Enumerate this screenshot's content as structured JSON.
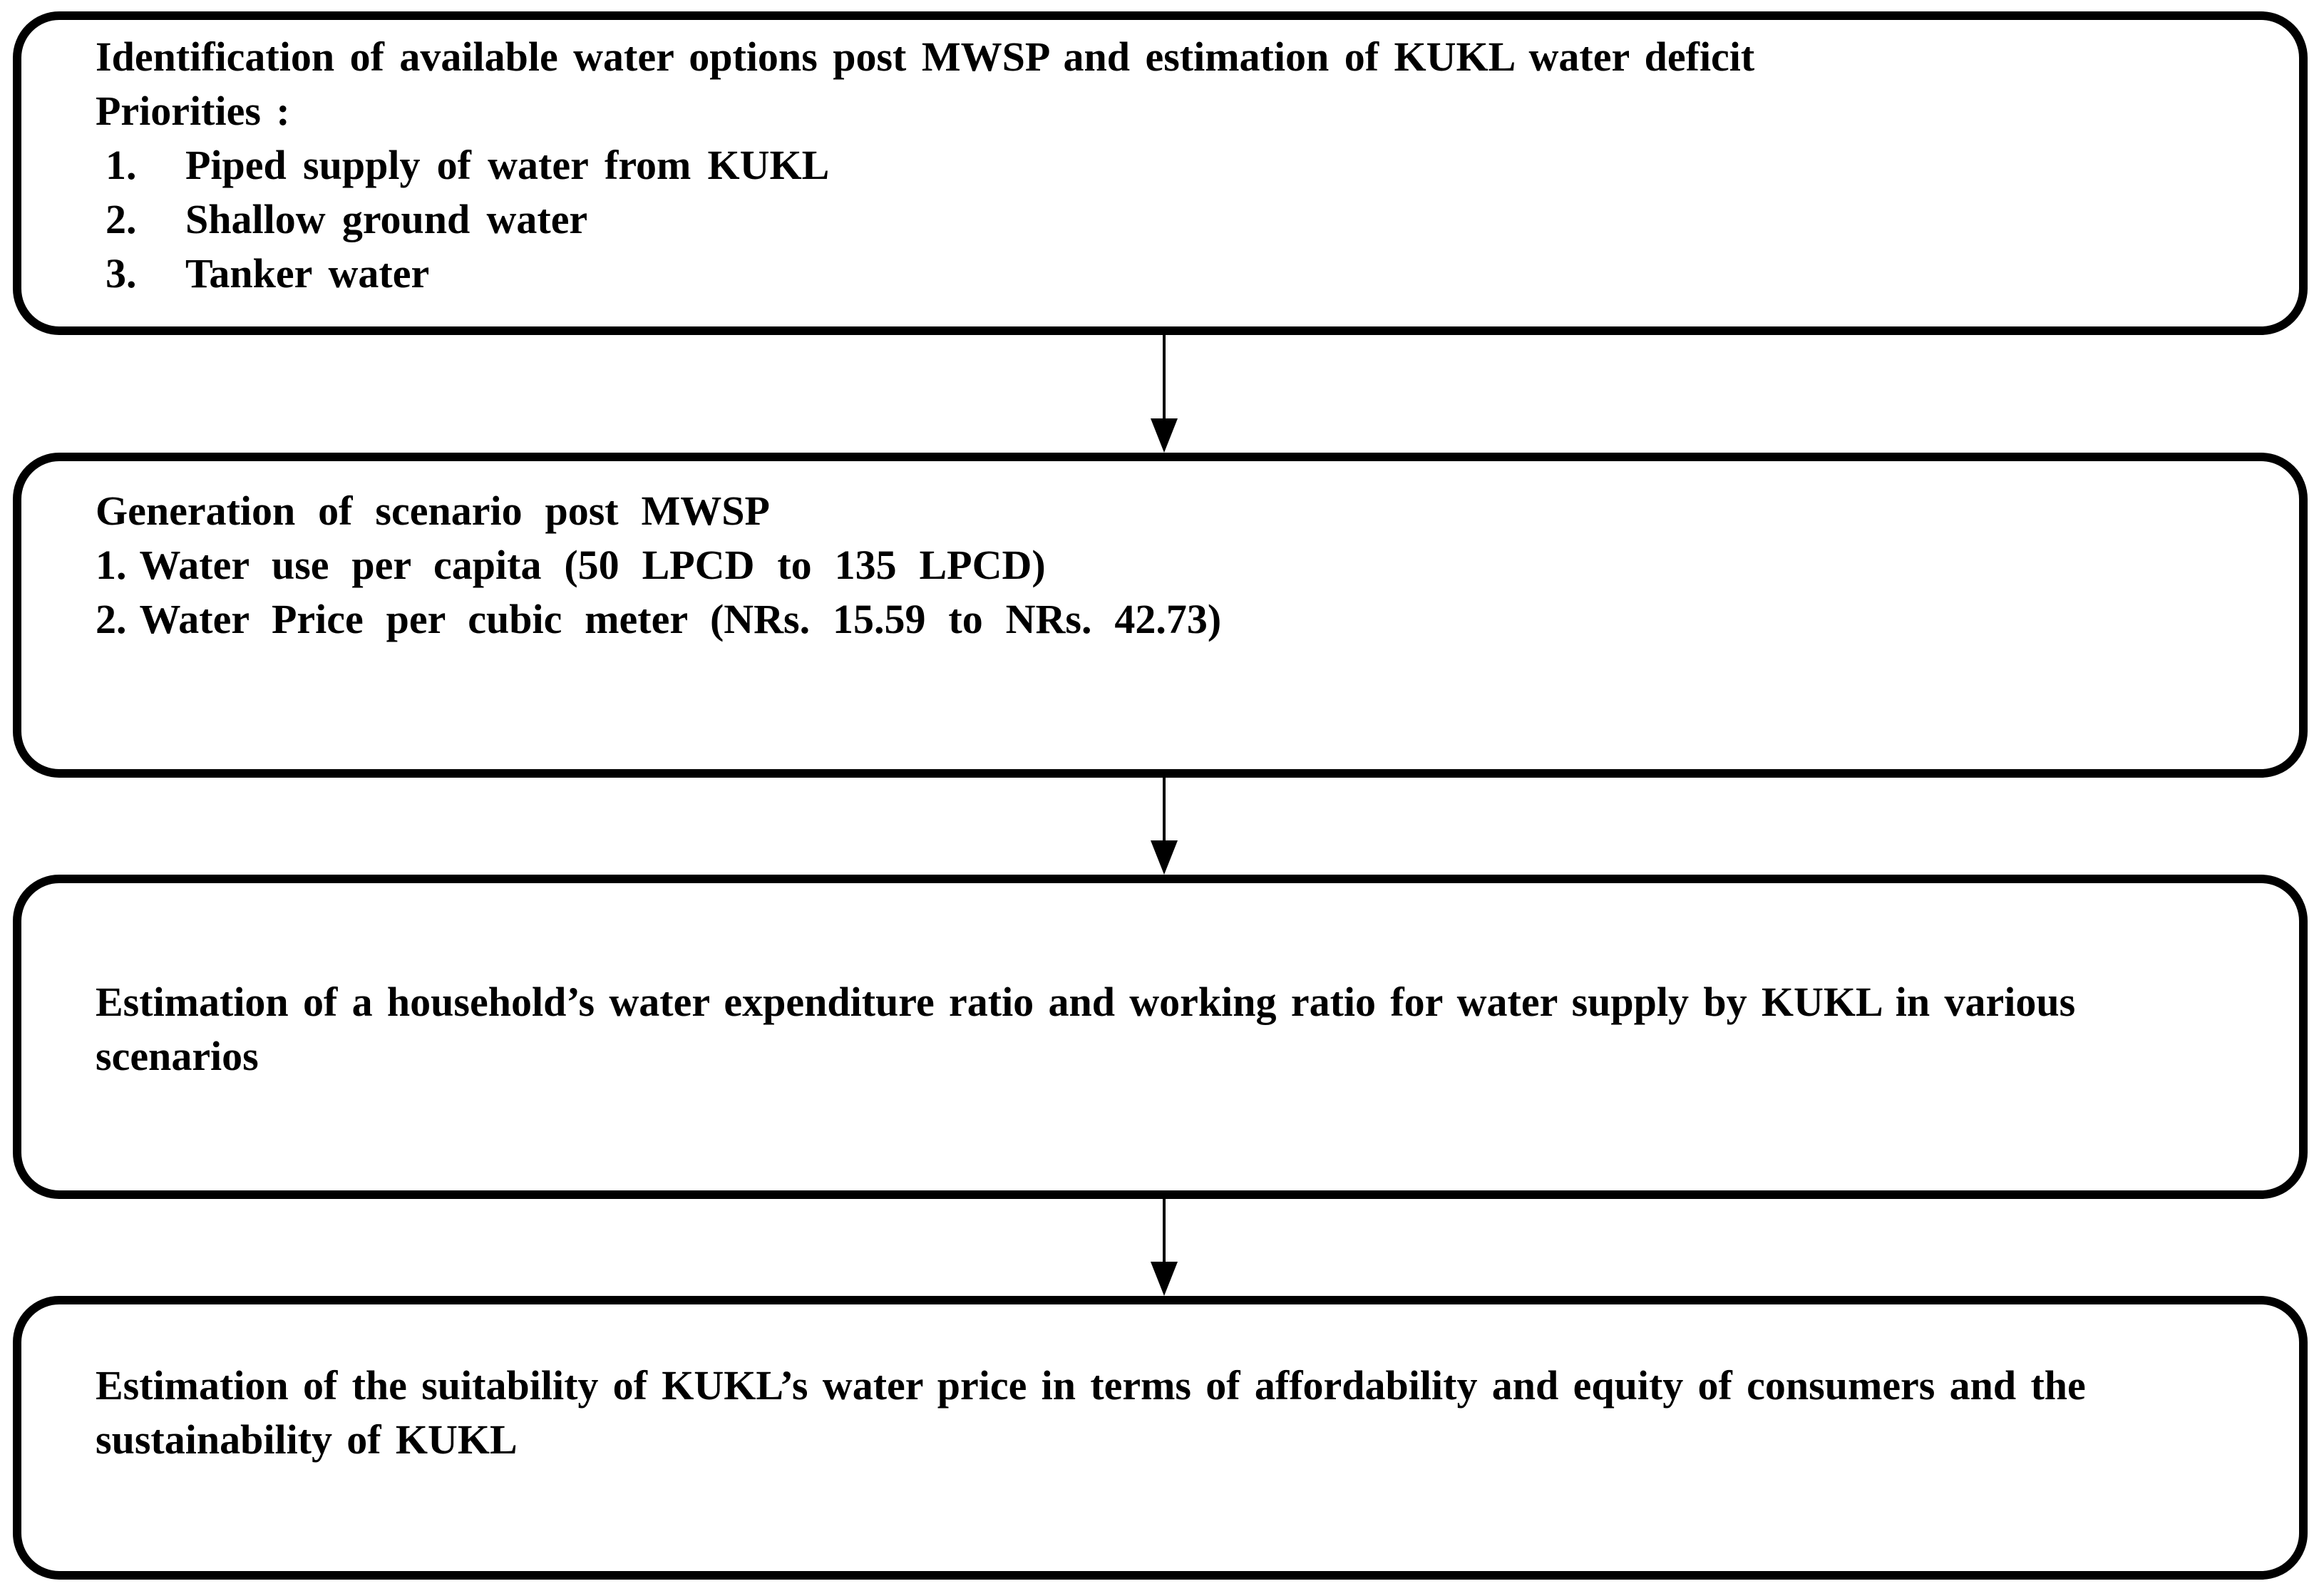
{
  "flowchart": {
    "colors": {
      "border": "#000000",
      "background": "#ffffff",
      "text": "#000000"
    },
    "boxes": [
      {
        "title": "Identification of available water options post MWSP and estimation of KUKL water deficit",
        "subtitle": "Priorities :",
        "items": [
          {
            "num": "1.",
            "text": "Piped supply of water from KUKL"
          },
          {
            "num": "2.",
            "text": "Shallow ground water"
          },
          {
            "num": "3.",
            "text": "Tanker water"
          }
        ]
      },
      {
        "title": "Generation of scenario post MWSP",
        "items": [
          {
            "num": "1.",
            "text": "Water use per capita (50 LPCD to 135 LPCD)"
          },
          {
            "num": "2.",
            "text": "Water Price per cubic meter (NRs. 15.59 to NRs. 42.73)"
          }
        ]
      },
      {
        "text": "Estimation of a household’s water expenditure ratio and working ratio for water supply by KUKL in various\nscenarios"
      },
      {
        "text": "Estimation of the suitability of KUKL’s water price in terms of affordability and equity of consumers and the\nsustainability of KUKL"
      }
    ]
  }
}
